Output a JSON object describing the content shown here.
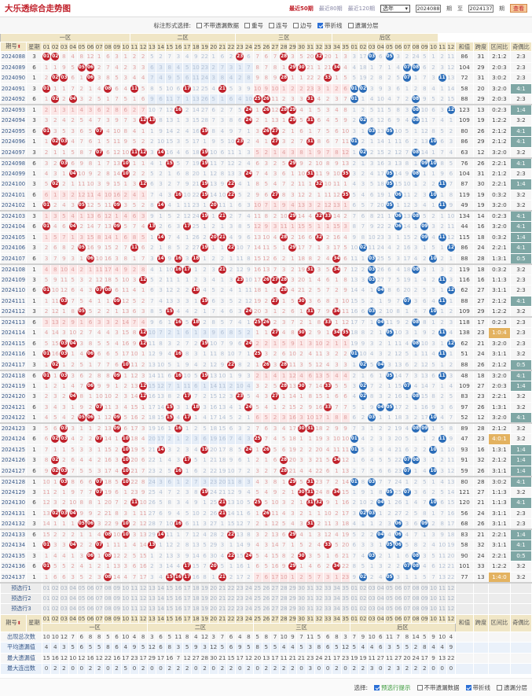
{
  "header": {
    "title": "大乐透综合走势图",
    "links": [
      {
        "label": "最近50期",
        "active": true
      },
      {
        "label": "最近80期",
        "active": false
      },
      {
        "label": "最近120期",
        "active": false
      }
    ],
    "year_select": "选年",
    "from_issue": "2024088",
    "issue_unit": "期",
    "to_label": "至",
    "to_issue": "2024137",
    "view_button": "查看"
  },
  "filters": {
    "label": "标注形式选择:",
    "options": [
      {
        "label": "不带遗漏数据",
        "checked": false
      },
      {
        "label": "重号",
        "checked": false
      },
      {
        "label": "连号",
        "checked": false
      },
      {
        "label": "边号",
        "checked": false
      },
      {
        "label": "带折线",
        "checked": true
      },
      {
        "label": "遗漏分层",
        "checked": false
      }
    ]
  },
  "table": {
    "col_issue": "期号",
    "col_weekday": "星期",
    "zones": [
      "一区",
      "二区",
      "三区",
      "后区"
    ],
    "col_sum": "和值",
    "col_span": "跨度",
    "col_zone_ratio": "区间比",
    "col_odd_even": "奇偶比",
    "front_numbers": [
      "01",
      "02",
      "03",
      "04",
      "05",
      "06",
      "07",
      "08",
      "09",
      "10",
      "11",
      "12",
      "13",
      "14",
      "15",
      "16",
      "17",
      "18",
      "19",
      "20",
      "21",
      "22",
      "23",
      "24",
      "25",
      "26",
      "27",
      "28",
      "29",
      "30",
      "31",
      "32",
      "33",
      "34",
      "35"
    ],
    "back_numbers": [
      "01",
      "02",
      "03",
      "04",
      "05",
      "06",
      "07",
      "08",
      "09",
      "10",
      "11",
      "12"
    ]
  },
  "first_row_omission": {
    "front": [
      0,
      0,
      8,
      4,
      8,
      12,
      1,
      6,
      3,
      1,
      2,
      2,
      5,
      2,
      7,
      3,
      4,
      9,
      22,
      1,
      6,
      2,
      0,
      6,
      7,
      6,
      7,
      0,
      3,
      5,
      20,
      0,
      20,
      1,
      3
    ],
    "back": [
      3,
      17,
      0,
      6,
      0,
      3,
      2,
      24,
      5,
      1,
      2,
      11
    ]
  },
  "draws": [
    {
      "issue": "2024088",
      "weekday": "3",
      "front": [
        1,
        2,
        23,
        28,
        32
      ],
      "back": [
        3,
        5
      ],
      "sum": "86",
      "span": "31",
      "zone_ratio": "2:1:2",
      "odd_even": "2:3"
    },
    {
      "issue": "2024089",
      "weekday": "6",
      "front": [
        5,
        6,
        29,
        30,
        34
      ],
      "back": [
        7,
        8
      ],
      "sum": "104",
      "span": "29",
      "zone_ratio": "2:0:3",
      "odd_even": "2:3"
    },
    {
      "issue": "2024090",
      "weekday": "1",
      "front": [
        2,
        3,
        6,
        28,
        33
      ],
      "back": [
        7,
        11
      ],
      "sum": "72",
      "span": "31",
      "zone_ratio": "3:0:2",
      "odd_even": "2:3"
    },
    {
      "issue": "2024091",
      "weekday": "3",
      "front": [
        1,
        8,
        11,
        17,
        21
      ],
      "back": [
        1,
        2
      ],
      "sum": "58",
      "span": "20",
      "zone_ratio": "3:2:0",
      "odd_even": "4:1"
    },
    {
      "issue": "2024092",
      "weekday": "6",
      "front": [
        2,
        4,
        25,
        26,
        31
      ],
      "back": [
        1,
        8
      ],
      "sum": "88",
      "span": "29",
      "zone_ratio": "2:0:3",
      "odd_even": "2:3"
    },
    {
      "issue": "2024093",
      "weekday": "1",
      "front": [
        16,
        24,
        26,
        28,
        29
      ],
      "back": [
        8,
        12
      ],
      "sum": "123",
      "span": "13",
      "zone_ratio": "0:2:3",
      "odd_even": "1:4"
    },
    {
      "issue": "2024094",
      "weekday": "3",
      "front": [
        12,
        13,
        24,
        29,
        31
      ],
      "back": [
        2,
        8
      ],
      "sum": "109",
      "span": "19",
      "zone_ratio": "1:2:2",
      "odd_even": "3:2"
    },
    {
      "issue": "2024095",
      "weekday": "6",
      "front": [
        1,
        7,
        19,
        26,
        27
      ],
      "back": [
        3,
        5
      ],
      "sum": "80",
      "span": "26",
      "zone_ratio": "2:1:2",
      "odd_even": "4:1"
    },
    {
      "issue": "2024096",
      "weekday": "1",
      "front": [
        2,
        3,
        23,
        27,
        31
      ],
      "back": [
        1,
        10
      ],
      "sum": "86",
      "span": "29",
      "zone_ratio": "2:1:2",
      "odd_even": "4:1"
    },
    {
      "issue": "2024097",
      "weekday": "3",
      "front": [
        7,
        11,
        12,
        14,
        19
      ],
      "back": [
        2,
        8
      ],
      "sum": "63",
      "span": "12",
      "zone_ratio": "3:2:0",
      "odd_even": "3:2"
    },
    {
      "issue": "2024098",
      "weekday": "6",
      "front": [
        3,
        10,
        15,
        19,
        29
      ],
      "back": [
        9,
        10
      ],
      "sum": "76",
      "span": "26",
      "zone_ratio": "2:2:1",
      "odd_even": "4:1"
    },
    {
      "issue": "2024099",
      "weekday": "1",
      "front": [
        4,
        10,
        24,
        31,
        35
      ],
      "back": [
        5,
        8
      ],
      "sum": "104",
      "span": "31",
      "zone_ratio": "2:1:2",
      "odd_even": "2:3"
    },
    {
      "issue": "2024100",
      "weekday": "3",
      "front": [
        2,
        12,
        19,
        22,
        32
      ],
      "back": [
        5,
        11
      ],
      "sum": "87",
      "span": "30",
      "zone_ratio": "2:2:1",
      "odd_even": "1:4"
    },
    {
      "issue": "2024101",
      "weekday": "6",
      "front": [
        16,
        19,
        22,
        27,
        35
      ],
      "back": [
        6,
        10
      ],
      "sum": "119",
      "span": "19",
      "zone_ratio": "0:3:2",
      "odd_even": "3:2"
    },
    {
      "issue": "2024102",
      "weekday": "1",
      "front": [
        1,
        5,
        9,
        14,
        20
      ],
      "back": [
        5,
        11
      ],
      "sum": "49",
      "span": "19",
      "zone_ratio": "3:2:0",
      "odd_even": "3:2"
    },
    {
      "issue": "2024103",
      "weekday": "3",
      "front": [
        19,
        21,
        29,
        32,
        33
      ],
      "back": [
        6,
        8
      ],
      "sum": "134",
      "span": "14",
      "zone_ratio": "0:2:3",
      "odd_even": "4:1"
    },
    {
      "issue": "2024104",
      "weekday": "6",
      "front": [
        1,
        4,
        9,
        13,
        17
      ],
      "back": [
        6,
        9
      ],
      "sum": "44",
      "span": "16",
      "zone_ratio": "3:2:0",
      "odd_even": "4:1"
    },
    {
      "issue": "2024105",
      "weekday": "1",
      "front": [
        14,
        20,
        21,
        28,
        32
      ],
      "back": [
        9,
        11
      ],
      "sum": "115",
      "span": "18",
      "zone_ratio": "0:3:2",
      "odd_even": "1:4"
    },
    {
      "issue": "2024106",
      "weekday": "3",
      "front": [
        5,
        11,
        19,
        22,
        29
      ],
      "back": [
        2,
        12
      ],
      "sum": "86",
      "span": "24",
      "zone_ratio": "2:2:1",
      "odd_even": "4:1"
    },
    {
      "issue": "2024107",
      "weekday": "6",
      "front": [
        6,
        14,
        16,
        18,
        34
      ],
      "back": [
        3,
        10
      ],
      "sum": "88",
      "span": "28",
      "zone_ratio": "1:3:1",
      "odd_even": "0:5"
    },
    {
      "issue": "2024108",
      "weekday": "1",
      "front": [
        16,
        17,
        21,
        31,
        34
      ],
      "back": [
        3,
        8
      ],
      "sum": "119",
      "span": "18",
      "zone_ratio": "0:3:2",
      "odd_even": "3:2"
    },
    {
      "issue": "2024109",
      "weekday": "3",
      "front": [
        12,
        23,
        26,
        27,
        28
      ],
      "back": [
        3,
        11
      ],
      "sum": "116",
      "span": "16",
      "zone_ratio": "1:1:3",
      "odd_even": "2:3"
    },
    {
      "issue": "2024110",
      "weekday": "6",
      "front": [
        1,
        7,
        8,
        18,
        28
      ],
      "back": [
        4,
        12
      ],
      "sum": "62",
      "span": "27",
      "zone_ratio": "3:1:1",
      "odd_even": "2:3"
    },
    {
      "issue": "2024111",
      "weekday": "1",
      "front": [
        3,
        9,
        19,
        27,
        30
      ],
      "back": [
        7,
        11
      ],
      "sum": "88",
      "span": "27",
      "zone_ratio": "2:1:2",
      "odd_even": "4:1"
    },
    {
      "issue": "2024112",
      "weekday": "3",
      "front": [
        5,
        15,
        24,
        31,
        34
      ],
      "back": [
        3,
        10
      ],
      "sum": "109",
      "span": "29",
      "zone_ratio": "1:2:2",
      "odd_even": "3:2"
    },
    {
      "issue": "2024113",
      "weekday": "6",
      "front": [
        16,
        18,
        25,
        26,
        33
      ],
      "back": [
        4,
        8
      ],
      "sum": "118",
      "span": "17",
      "zone_ratio": "0:2:3",
      "odd_even": "2:3"
    },
    {
      "issue": "2024114",
      "weekday": "1",
      "front": [
        12,
        27,
        30,
        34,
        35
      ],
      "back": [
        5,
        11
      ],
      "sum": "138",
      "span": "23",
      "zone_ratio": "1:0:4",
      "odd_even": "2:3"
    },
    {
      "issue": "2024115",
      "weekday": "6",
      "front": [
        3,
        4,
        12,
        19,
        24
      ],
      "back": [
        8,
        12
      ],
      "sum": "62",
      "span": "21",
      "zone_ratio": "3:2:0",
      "odd_even": "2:3"
    },
    {
      "issue": "2024116",
      "weekday": "1",
      "front": [
        1,
        3,
        6,
        16,
        25
      ],
      "back": [
        1,
        11
      ],
      "sum": "51",
      "span": "24",
      "zone_ratio": "3:1:1",
      "odd_even": "3:2"
    },
    {
      "issue": "2024117",
      "weekday": "3",
      "front": [
        2,
        10,
        22,
        26,
        28
      ],
      "back": [
        2,
        4
      ],
      "sum": "88",
      "span": "26",
      "zone_ratio": "2:1:2",
      "odd_even": "0:5"
    },
    {
      "issue": "2024118",
      "weekday": "6",
      "front": [
        1,
        3,
        9,
        16,
        19
      ],
      "back": [
        5,
        11
      ],
      "sum": "48",
      "span": "18",
      "zone_ratio": "3:2:0",
      "odd_even": "4:1"
    },
    {
      "issue": "2024119",
      "weekday": "1",
      "front": [
        6,
        12,
        28,
        30,
        33
      ],
      "back": [
        2,
        7
      ],
      "sum": "109",
      "span": "27",
      "zone_ratio": "2:0:3",
      "odd_even": "1:4"
    },
    {
      "issue": "2024120",
      "weekday": "3",
      "front": [
        4,
        12,
        17,
        23,
        27
      ],
      "back": [
        2,
        8
      ],
      "sum": "83",
      "span": "23",
      "zone_ratio": "2:2:1",
      "odd_even": "3:2"
    },
    {
      "issue": "2024121",
      "weekday": "6",
      "front": [
        7,
        15,
        18,
        24,
        33
      ],
      "back": [
        4,
        5
      ],
      "sum": "97",
      "span": "26",
      "zone_ratio": "1:3:1",
      "odd_even": "3:2"
    },
    {
      "issue": "2024122",
      "weekday": "1",
      "front": [
        5,
        6,
        9,
        15,
        17
      ],
      "back": [
        3,
        10
      ],
      "sum": "52",
      "span": "12",
      "zone_ratio": "3:2:0",
      "odd_even": "4:1"
    },
    {
      "issue": "2024123",
      "weekday": "3",
      "front": [
        3,
        9,
        16,
        30,
        31
      ],
      "back": [
        8,
        9
      ],
      "sum": "89",
      "span": "28",
      "zone_ratio": "2:1:2",
      "odd_even": "3:2"
    },
    {
      "issue": "2024124",
      "weekday": "6",
      "front": [
        2,
        3,
        7,
        10,
        25
      ],
      "back": [
        1,
        11
      ],
      "sum": "47",
      "span": "23",
      "zone_ratio": "4:0:1",
      "odd_even": "3:2"
    },
    {
      "issue": "2024125",
      "weekday": "1",
      "front": [
        10,
        14,
        19,
        24,
        26
      ],
      "back": [
        1,
        10
      ],
      "sum": "93",
      "span": "16",
      "zone_ratio": "1:3:1",
      "odd_even": "1:4"
    },
    {
      "issue": "2024126",
      "weekday": "3",
      "front": [
        2,
        10,
        17,
        28,
        34
      ],
      "back": [
        7,
        8
      ],
      "sum": "91",
      "span": "32",
      "zone_ratio": "2:1:2",
      "odd_even": "1:4"
    },
    {
      "issue": "2024127",
      "weekday": "6",
      "front": [
        2,
        3,
        10,
        16,
        28
      ],
      "back": [
        7,
        10
      ],
      "sum": "59",
      "span": "26",
      "zone_ratio": "3:1:1",
      "odd_even": "1:4"
    },
    {
      "issue": "2024128",
      "weekday": "1",
      "front": [
        3,
        7,
        10,
        29,
        31
      ],
      "back": [
        1,
        3
      ],
      "sum": "80",
      "span": "28",
      "zone_ratio": "3:0:2",
      "odd_even": "4:1"
    },
    {
      "issue": "2024129",
      "weekday": "3",
      "front": [
        7,
        19,
        30,
        31,
        34
      ],
      "back": [
        5,
        7
      ],
      "sum": "121",
      "span": "27",
      "zone_ratio": "1:1:3",
      "odd_even": "3:2"
    },
    {
      "issue": "2024130",
      "weekday": "6",
      "front": [
        11,
        21,
        25,
        31,
        32
      ],
      "back": [
        4,
        10
      ],
      "sum": "120",
      "span": "21",
      "zone_ratio": "1:1:3",
      "odd_even": "4:1"
    },
    {
      "issue": "2024131",
      "weekday": "1",
      "front": [
        2,
        3,
        4,
        21,
        26
      ],
      "back": [
        2,
        3
      ],
      "sum": "56",
      "span": "24",
      "zone_ratio": "3:1:1",
      "odd_even": "2:3"
    },
    {
      "issue": "2024132",
      "weekday": "3",
      "front": [
        5,
        6,
        10,
        16,
        31
      ],
      "back": [
        6,
        9
      ],
      "sum": "68",
      "span": "26",
      "zone_ratio": "3:1:1",
      "odd_even": "2:3"
    },
    {
      "issue": "2024133",
      "weekday": "6",
      "front": [
        8,
        10,
        14,
        22,
        29
      ],
      "back": [
        4,
        6
      ],
      "sum": "83",
      "span": "21",
      "zone_ratio": "2:2:1",
      "odd_even": "1:4"
    },
    {
      "issue": "2024134",
      "weekday": "1",
      "front": [
        1,
        4,
        7,
        13,
        33
      ],
      "back": [
        5,
        6
      ],
      "sum": "58",
      "span": "32",
      "zone_ratio": "3:1:1",
      "odd_even": "4:1"
    },
    {
      "issue": "2024135",
      "weekday": "3",
      "front": [
        6,
        8,
        22,
        24,
        30
      ],
      "back": [
        3,
        8
      ],
      "sum": "90",
      "span": "24",
      "zone_ratio": "2:2:1",
      "odd_even": "0:5"
    },
    {
      "issue": "2024136",
      "weekday": "6",
      "front": [
        1,
        17,
        20,
        29,
        34
      ],
      "back": [
        7,
        8
      ],
      "sum": "101",
      "span": "33",
      "zone_ratio": "1:2:2",
      "odd_even": "3:2"
    },
    {
      "issue": "2024137",
      "weekday": "1",
      "front": [
        8,
        15,
        16,
        17,
        21
      ],
      "back": [
        2,
        5
      ],
      "sum": "77",
      "span": "13",
      "zone_ratio": "1:4:0",
      "odd_even": "3:2"
    }
  ],
  "preselect_rows": [
    "预选行1",
    "预选行2",
    "预选行3"
  ],
  "stats": [
    {
      "label": "出现总次数",
      "front": [
        10,
        10,
        12,
        7,
        6,
        8,
        8,
        5,
        6,
        10,
        4,
        8,
        3,
        6,
        5,
        11,
        8,
        4,
        12,
        3,
        7,
        6,
        4,
        8,
        5,
        8,
        7,
        10,
        9,
        7,
        11,
        5,
        6,
        8,
        3
      ],
      "back": [
        7,
        9,
        10,
        6,
        11,
        7,
        8,
        14,
        5,
        9,
        10,
        4
      ]
    },
    {
      "label": "平均遗漏值",
      "front": [
        4,
        4,
        3,
        5,
        6,
        5,
        5,
        8,
        6,
        4,
        9,
        5,
        12,
        6,
        8,
        3,
        5,
        9,
        3,
        12,
        5,
        6,
        9,
        5,
        8,
        5,
        5,
        4,
        4,
        5,
        3,
        8,
        6,
        5,
        12
      ],
      "back": [
        5,
        4,
        4,
        6,
        3,
        5,
        5,
        2,
        8,
        4,
        4,
        9
      ]
    },
    {
      "label": "最大遗漏值",
      "front": [
        15,
        16,
        12,
        10,
        12,
        16,
        12,
        22,
        16,
        17,
        23,
        17,
        29,
        17,
        16,
        7,
        12,
        27,
        28,
        30,
        21,
        15,
        17,
        12,
        20,
        13,
        17,
        11,
        21,
        21,
        23,
        24,
        21,
        17,
        23
      ],
      "back": [
        19,
        19,
        11,
        27,
        11,
        27,
        20,
        24,
        17,
        9,
        13,
        22
      ]
    },
    {
      "label": "最大连出数",
      "front": [
        0,
        2,
        2,
        0,
        0,
        2,
        2,
        0,
        2,
        5,
        0,
        2,
        0,
        0,
        2,
        2,
        2,
        0,
        2,
        0,
        2,
        2,
        0,
        2,
        0,
        2,
        2,
        2,
        2,
        0,
        3,
        0,
        0,
        2,
        0
      ],
      "back": [
        2,
        2,
        3,
        0,
        2,
        3,
        2,
        2,
        2,
        0,
        0,
        0
      ]
    }
  ],
  "footer": {
    "label": "选择:",
    "options": [
      {
        "label": "预选行提示",
        "checked": true
      },
      {
        "label": "不带遗漏数据",
        "checked": false
      },
      {
        "label": "带折线",
        "checked": true
      },
      {
        "label": "遗漏分层",
        "checked": false
      }
    ]
  },
  "colors": {
    "brand_red": "#c0202a",
    "front_ball": "#c0202a",
    "back_ball": "#2a6cb8",
    "odd_even_highlight": "#7fa7a5",
    "zone_ratio_highlight": "#e3b260",
    "zone_header": "#f0e6c6"
  }
}
